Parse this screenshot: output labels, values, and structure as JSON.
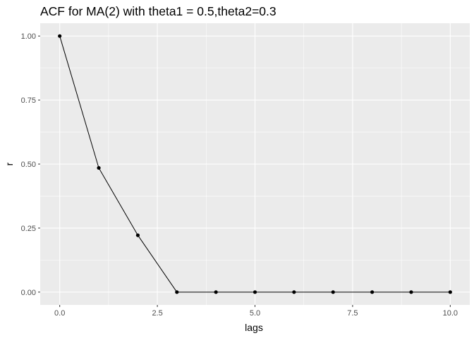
{
  "chart_data": {
    "type": "line",
    "title": "ACF for MA(2) with theta1 = 0.5,theta2=0.3",
    "xlabel": "lags",
    "ylabel": "r",
    "xlim": [
      -0.5,
      10.5
    ],
    "ylim": [
      -0.05,
      1.05
    ],
    "x_ticks": [
      0,
      2.5,
      5,
      7.5,
      10
    ],
    "x_tick_labels": [
      "0.0",
      "2.5",
      "5.0",
      "7.5",
      "10.0"
    ],
    "y_ticks": [
      0,
      0.25,
      0.5,
      0.75,
      1
    ],
    "y_tick_labels": [
      "0.00",
      "0.25",
      "0.50",
      "0.75",
      "1.00"
    ],
    "grid": true,
    "series": [
      {
        "x": [
          0,
          1,
          2,
          3,
          4,
          5,
          6,
          7,
          8,
          9,
          10
        ],
        "y": [
          1.0,
          0.485,
          0.222,
          0,
          0,
          0,
          0,
          0,
          0,
          0,
          0
        ]
      }
    ],
    "colors": {
      "panel": "#ebebeb",
      "grid_major": "#ffffff",
      "line": "#000000",
      "tick_text": "#4d4d4d"
    }
  }
}
